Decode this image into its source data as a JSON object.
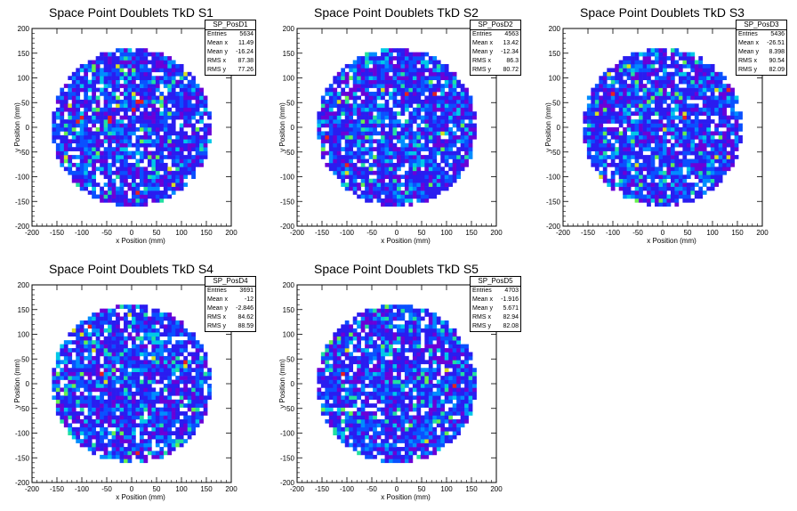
{
  "chart_data": [
    {
      "type": "heatmap",
      "title": "Space Point Doublets TkD S1",
      "xlabel": "x Position (mm)",
      "ylabel": "y Position (mm)",
      "xlim": [
        -200,
        200
      ],
      "ylim": [
        -200,
        200
      ],
      "xticks": [
        -200,
        -150,
        -100,
        -50,
        0,
        50,
        100,
        150,
        200
      ],
      "yticks": [
        -200,
        -150,
        -100,
        -50,
        0,
        50,
        100,
        150,
        200
      ],
      "detector_radius": 160,
      "stats": {
        "name": "SP_PosD1",
        "rows": [
          {
            "label": "Entries",
            "value": "5634"
          },
          {
            "label": "Mean x",
            "value": "11.49"
          },
          {
            "label": "Mean y",
            "value": "-16.24"
          },
          {
            "label": "RMS x",
            "value": "87.38"
          },
          {
            "label": "RMS y",
            "value": "77.26"
          }
        ]
      }
    },
    {
      "type": "heatmap",
      "title": "Space Point Doublets TkD S2",
      "xlabel": "x Position (mm)",
      "ylabel": "y Position (mm)",
      "xlim": [
        -200,
        200
      ],
      "ylim": [
        -200,
        200
      ],
      "xticks": [
        -200,
        -150,
        -100,
        -50,
        0,
        50,
        100,
        150,
        200
      ],
      "yticks": [
        -200,
        -150,
        -100,
        -50,
        0,
        50,
        100,
        150,
        200
      ],
      "detector_radius": 160,
      "stats": {
        "name": "SP_PosD2",
        "rows": [
          {
            "label": "Entries",
            "value": "4563"
          },
          {
            "label": "Mean x",
            "value": "13.42"
          },
          {
            "label": "Mean y",
            "value": "-12.34"
          },
          {
            "label": "RMS x",
            "value": "86.3"
          },
          {
            "label": "RMS y",
            "value": "80.72"
          }
        ]
      }
    },
    {
      "type": "heatmap",
      "title": "Space Point Doublets TkD S3",
      "xlabel": "x Position (mm)",
      "ylabel": "y Position (mm)",
      "xlim": [
        -200,
        200
      ],
      "ylim": [
        -200,
        200
      ],
      "xticks": [
        -200,
        -150,
        -100,
        -50,
        0,
        50,
        100,
        150,
        200
      ],
      "yticks": [
        -200,
        -150,
        -100,
        -50,
        0,
        50,
        100,
        150,
        200
      ],
      "detector_radius": 160,
      "stats": {
        "name": "SP_PosD3",
        "rows": [
          {
            "label": "Entries",
            "value": "5436"
          },
          {
            "label": "Mean x",
            "value": "-26.51"
          },
          {
            "label": "Mean y",
            "value": "8.398"
          },
          {
            "label": "RMS x",
            "value": "90.54"
          },
          {
            "label": "RMS y",
            "value": "82.09"
          }
        ]
      }
    },
    {
      "type": "heatmap",
      "title": "Space Point Doublets TkD S4",
      "xlabel": "x Position (mm)",
      "ylabel": "y Position (mm)",
      "xlim": [
        -200,
        200
      ],
      "ylim": [
        -200,
        200
      ],
      "xticks": [
        -200,
        -150,
        -100,
        -50,
        0,
        50,
        100,
        150,
        200
      ],
      "yticks": [
        -200,
        -150,
        -100,
        -50,
        0,
        50,
        100,
        150,
        200
      ],
      "detector_radius": 160,
      "stats": {
        "name": "SP_PosD4",
        "rows": [
          {
            "label": "Entries",
            "value": "3691"
          },
          {
            "label": "Mean x",
            "value": "-12"
          },
          {
            "label": "Mean y",
            "value": "-2.846"
          },
          {
            "label": "RMS x",
            "value": "84.62"
          },
          {
            "label": "RMS y",
            "value": "88.59"
          }
        ]
      }
    },
    {
      "type": "heatmap",
      "title": "Space Point Doublets TkD S5",
      "xlabel": "x Position (mm)",
      "ylabel": "y Position (mm)",
      "xlim": [
        -200,
        200
      ],
      "ylim": [
        -200,
        200
      ],
      "xticks": [
        -200,
        -150,
        -100,
        -50,
        0,
        50,
        100,
        150,
        200
      ],
      "yticks": [
        -200,
        -150,
        -100,
        -50,
        0,
        50,
        100,
        150,
        200
      ],
      "detector_radius": 160,
      "stats": {
        "name": "SP_PosD5",
        "rows": [
          {
            "label": "Entries",
            "value": "4703"
          },
          {
            "label": "Mean x",
            "value": "-1.916"
          },
          {
            "label": "Mean y",
            "value": "5.671"
          },
          {
            "label": "RMS x",
            "value": "82.94"
          },
          {
            "label": "RMS y",
            "value": "82.08"
          }
        ]
      }
    }
  ],
  "colors": {
    "palette": [
      "#ffffff",
      "#6a00d8",
      "#2a1cf0",
      "#0a50ff",
      "#008cff",
      "#00c8e8",
      "#22e0a0",
      "#66f050",
      "#d8e020",
      "#ff8800",
      "#e82020"
    ],
    "frame": "#000000"
  }
}
